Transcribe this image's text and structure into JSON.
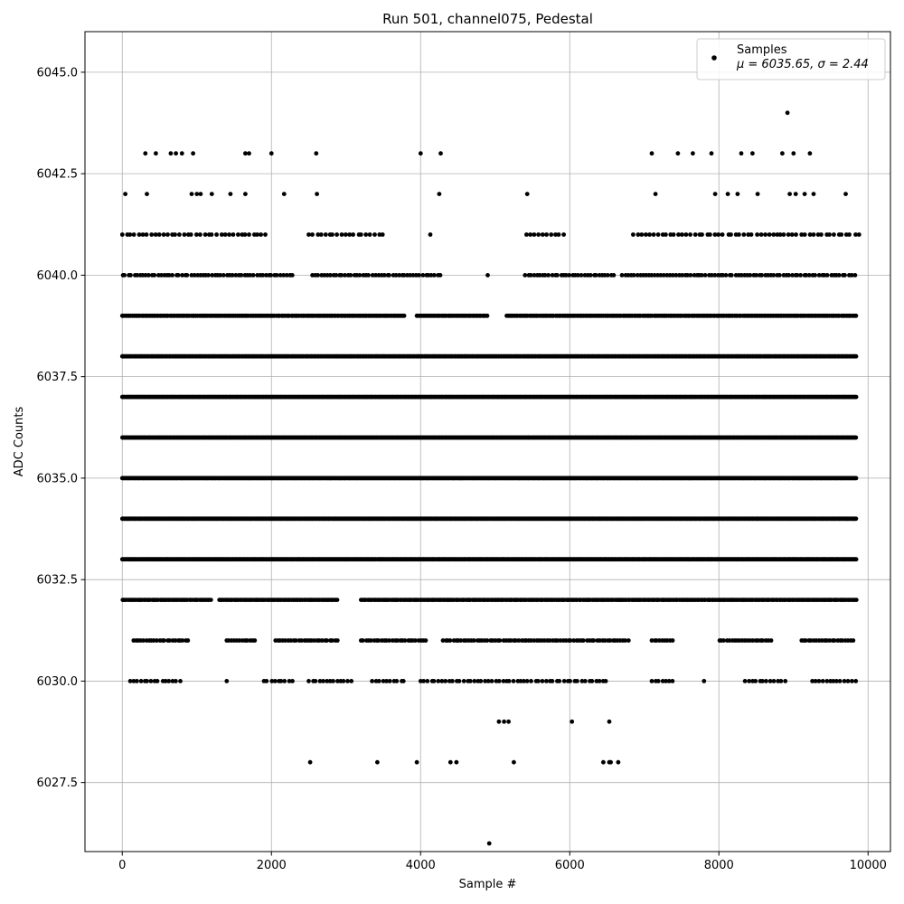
{
  "chart_data": {
    "type": "scatter",
    "title": "Run 501, channel075, Pedestal",
    "xlabel": "Sample #",
    "ylabel": "ADC Counts",
    "xlim": [
      -500,
      10300
    ],
    "ylim": [
      6025.8,
      6046.0
    ],
    "x_ticks": [
      0,
      2000,
      4000,
      6000,
      8000,
      10000
    ],
    "y_ticks": [
      6027.5,
      6030.0,
      6032.5,
      6035.0,
      6037.5,
      6040.0,
      6042.5,
      6045.0
    ],
    "x_tick_labels": [
      "0",
      "2000",
      "4000",
      "6000",
      "8000",
      "10000"
    ],
    "y_tick_labels": [
      "6027.5",
      "6030.0",
      "6032.5",
      "6035.0",
      "6037.5",
      "6040.0",
      "6042.5",
      "6045.0"
    ],
    "grid": true,
    "legend_position": "top-right",
    "series": [
      {
        "name": "Samples",
        "annotation": "μ = 6035.65, σ = 2.44",
        "marker": "circle",
        "color": "#000000",
        "points": [
          {
            "x": 310,
            "y": 6043
          },
          {
            "x": 450,
            "y": 6043
          },
          {
            "x": 650,
            "y": 6043
          },
          {
            "x": 720,
            "y": 6043
          },
          {
            "x": 800,
            "y": 6043
          },
          {
            "x": 950,
            "y": 6043
          },
          {
            "x": 1650,
            "y": 6043
          },
          {
            "x": 1700,
            "y": 6043
          },
          {
            "x": 2000,
            "y": 6043
          },
          {
            "x": 2600,
            "y": 6043
          },
          {
            "x": 4000,
            "y": 6043
          },
          {
            "x": 4270,
            "y": 6043
          },
          {
            "x": 7100,
            "y": 6043
          },
          {
            "x": 7450,
            "y": 6043
          },
          {
            "x": 7650,
            "y": 6043
          },
          {
            "x": 7900,
            "y": 6043
          },
          {
            "x": 8300,
            "y": 6043
          },
          {
            "x": 8450,
            "y": 6043
          },
          {
            "x": 8850,
            "y": 6043
          },
          {
            "x": 9000,
            "y": 6043
          },
          {
            "x": 9220,
            "y": 6043
          },
          {
            "x": 8920,
            "y": 6044
          },
          {
            "x": 40,
            "y": 6042
          },
          {
            "x": 330,
            "y": 6042
          },
          {
            "x": 930,
            "y": 6042
          },
          {
            "x": 1000,
            "y": 6042
          },
          {
            "x": 1050,
            "y": 6042
          },
          {
            "x": 1200,
            "y": 6042
          },
          {
            "x": 1450,
            "y": 6042
          },
          {
            "x": 1650,
            "y": 6042
          },
          {
            "x": 2170,
            "y": 6042
          },
          {
            "x": 2610,
            "y": 6042
          },
          {
            "x": 4250,
            "y": 6042
          },
          {
            "x": 5430,
            "y": 6042
          },
          {
            "x": 7150,
            "y": 6042
          },
          {
            "x": 7950,
            "y": 6042
          },
          {
            "x": 8120,
            "y": 6042
          },
          {
            "x": 8250,
            "y": 6042
          },
          {
            "x": 8520,
            "y": 6042
          },
          {
            "x": 8950,
            "y": 6042
          },
          {
            "x": 9030,
            "y": 6042
          },
          {
            "x": 9150,
            "y": 6042
          },
          {
            "x": 9270,
            "y": 6042
          },
          {
            "x": 9700,
            "y": 6042
          },
          {
            "x": 2520,
            "y": 6028
          },
          {
            "x": 3420,
            "y": 6028
          },
          {
            "x": 3950,
            "y": 6028
          },
          {
            "x": 4400,
            "y": 6028
          },
          {
            "x": 4480,
            "y": 6028
          },
          {
            "x": 5250,
            "y": 6028
          },
          {
            "x": 6450,
            "y": 6028
          },
          {
            "x": 6530,
            "y": 6028
          },
          {
            "x": 6550,
            "y": 6028
          },
          {
            "x": 6650,
            "y": 6028
          },
          {
            "x": 5050,
            "y": 6029
          },
          {
            "x": 5120,
            "y": 6029
          },
          {
            "x": 5180,
            "y": 6029
          },
          {
            "x": 6030,
            "y": 6029
          },
          {
            "x": 6530,
            "y": 6029
          },
          {
            "x": 4920,
            "y": 6026
          }
        ],
        "dense_levels": [
          {
            "y": 6041,
            "x_ranges": [
              [
                0,
                1950
              ],
              [
                2500,
                3500
              ],
              [
                4130,
                4130
              ],
              [
                5420,
                5920
              ],
              [
                6850,
                9900
              ]
            ],
            "step": 55
          },
          {
            "y": 6040,
            "x_ranges": [
              [
                0,
                2300
              ],
              [
                2550,
                4270
              ],
              [
                4900,
                4900
              ],
              [
                5400,
                6600
              ],
              [
                6700,
                9850
              ]
            ],
            "step": 40
          },
          {
            "y": 6039,
            "x_ranges": [
              [
                0,
                3800
              ],
              [
                3950,
                4900
              ],
              [
                5150,
                9850
              ]
            ],
            "step": 22
          },
          {
            "y": 6038,
            "x_ranges": [
              [
                0,
                9850
              ]
            ],
            "step": 16
          },
          {
            "y": 6037,
            "x_ranges": [
              [
                0,
                9850
              ]
            ],
            "step": 12
          },
          {
            "y": 6036,
            "x_ranges": [
              [
                0,
                9850
              ]
            ],
            "step": 12
          },
          {
            "y": 6035,
            "x_ranges": [
              [
                0,
                9850
              ]
            ],
            "step": 12
          },
          {
            "y": 6034,
            "x_ranges": [
              [
                0,
                9850
              ]
            ],
            "step": 12
          },
          {
            "y": 6033,
            "x_ranges": [
              [
                0,
                9850
              ]
            ],
            "step": 14
          },
          {
            "y": 6032,
            "x_ranges": [
              [
                0,
                1200
              ],
              [
                1300,
                2900
              ],
              [
                3200,
                9850
              ]
            ],
            "step": 22
          },
          {
            "y": 6031,
            "x_ranges": [
              [
                150,
                900
              ],
              [
                1400,
                1800
              ],
              [
                2050,
                2900
              ],
              [
                3200,
                4100
              ],
              [
                4300,
                6800
              ],
              [
                7100,
                7400
              ],
              [
                8000,
                8700
              ],
              [
                9100,
                9800
              ]
            ],
            "step": 35
          },
          {
            "y": 6030,
            "x_ranges": [
              [
                100,
                800
              ],
              [
                1400,
                1400
              ],
              [
                1900,
                2300
              ],
              [
                2500,
                3100
              ],
              [
                3350,
                3800
              ],
              [
                4000,
                6500
              ],
              [
                7100,
                7400
              ],
              [
                7800,
                7800
              ],
              [
                8350,
                8900
              ],
              [
                9250,
                9850
              ]
            ],
            "step": 48
          }
        ]
      }
    ]
  }
}
